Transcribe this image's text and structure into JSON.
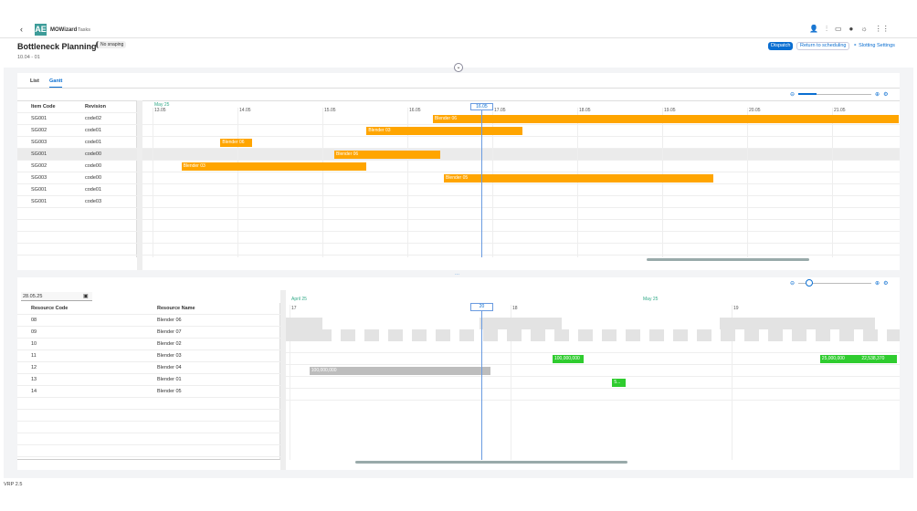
{
  "app": {
    "name": "MOWizard",
    "section": "Tasks",
    "logo": "AE",
    "version": "VRP 2.5"
  },
  "header": {
    "title": "Bottleneck Planning",
    "snap_badge": "No snaping",
    "subtitle": "10.04 - 01",
    "dispatch": "Dispatch",
    "return": "Return to scheduling",
    "slotting": "Slotting Settings"
  },
  "top_icons": [
    "user-add-icon",
    "analytics-icon",
    "monitor-icon",
    "globe-icon",
    "settings-icon",
    "grid-icon"
  ],
  "tabs": [
    {
      "label": "List",
      "active": false
    },
    {
      "label": "Gantt",
      "active": true
    }
  ],
  "colors": {
    "accent": "#0a6ed1",
    "bar": "#ffa500",
    "green": "#2fcc2f",
    "gray_bar": "#bdbdbd"
  },
  "top_gantt": {
    "columns": [
      "Item Code",
      "Revision"
    ],
    "rows": [
      [
        "SG001",
        "code02"
      ],
      [
        "SG002",
        "code01"
      ],
      [
        "SG003",
        "code01"
      ],
      [
        "SG001",
        "code00"
      ],
      [
        "SG002",
        "code00"
      ],
      [
        "SG003",
        "code00"
      ],
      [
        "SG001",
        "code01"
      ],
      [
        "SG001",
        "code03"
      ]
    ],
    "month_label": "May 25",
    "days": [
      "13.05",
      "14.05",
      "15.05",
      "16.05",
      "17.05",
      "18.05",
      "19.05",
      "20.05",
      "21.05"
    ],
    "now_label": "16.05",
    "now": 16.87,
    "bars": [
      {
        "row": 0,
        "label": "Blender 06",
        "start": 16.3,
        "end": 21.78
      },
      {
        "row": 1,
        "label": "Blender 03",
        "start": 15.52,
        "end": 17.35
      },
      {
        "row": 2,
        "label": "Blender 06",
        "start": 13.8,
        "end": 14.17
      },
      {
        "row": 3,
        "label": "Blender 06",
        "start": 15.14,
        "end": 16.39
      },
      {
        "row": 4,
        "label": "Blender 03",
        "start": 13.34,
        "end": 15.52
      },
      {
        "row": 5,
        "label": "Blender 05",
        "start": 16.43,
        "end": 19.6
      }
    ]
  },
  "bottom_gantt": {
    "date_value": "28.05.25",
    "columns": [
      "Resource Code",
      "Resource Name"
    ],
    "rows": [
      [
        "08",
        "Blender 06"
      ],
      [
        "09",
        "Blender 07"
      ],
      [
        "10",
        "Blender 02"
      ],
      [
        "11",
        "Blender 03"
      ],
      [
        "12",
        "Blender 04"
      ],
      [
        "13",
        "Blender 01"
      ],
      [
        "14",
        "Blender 05"
      ]
    ],
    "month_labels": [
      "April 25",
      "May 25"
    ],
    "days": [
      "17",
      "18",
      "19"
    ],
    "now_label": "20",
    "bars": [
      {
        "row": 3,
        "label": "100,000,000",
        "type": "green",
        "start": 18.19,
        "end": 18.33
      },
      {
        "row": 3,
        "label": "25,000,000",
        "type": "green",
        "start": 19.4,
        "end": 19.58
      },
      {
        "row": 3,
        "label": "22,538,370",
        "type": "green",
        "start": 19.58,
        "end": 19.75
      },
      {
        "row": 4,
        "label": "100,000,000",
        "type": "gray",
        "start": 17.09,
        "end": 17.91
      },
      {
        "row": 5,
        "label": "5...",
        "type": "green",
        "start": 18.46,
        "end": 18.52
      }
    ]
  }
}
